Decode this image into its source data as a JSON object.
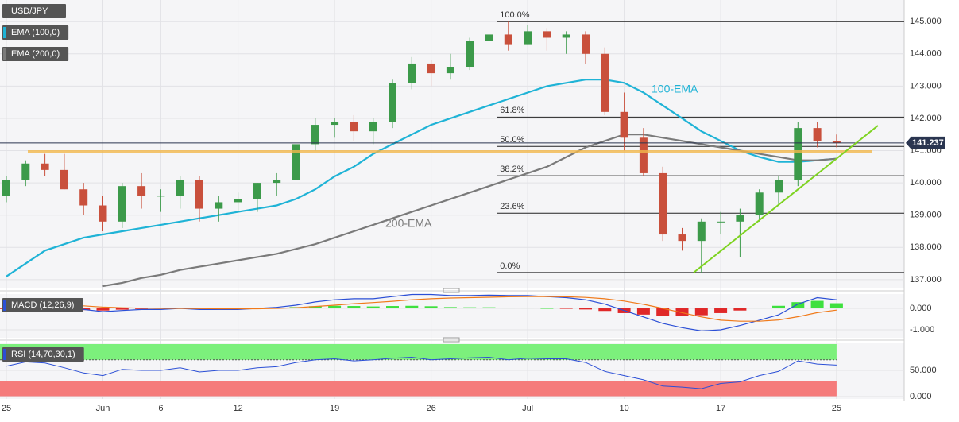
{
  "chart_data": [
    {
      "type": "candlestick",
      "title": "USD/JPY",
      "categories": [
        "25",
        null,
        null,
        null,
        null,
        "Jun",
        null,
        null,
        "6",
        null,
        null,
        null,
        "12",
        null,
        null,
        null,
        null,
        "19",
        null,
        null,
        null,
        null,
        "26",
        null,
        null,
        null,
        null,
        "Jul",
        null,
        null,
        null,
        null,
        "10",
        null,
        null,
        null,
        null,
        "17",
        null,
        null,
        null,
        null,
        null,
        "25"
      ],
      "open": [
        139.6,
        140.1,
        140.6,
        140.4,
        139.8,
        139.3,
        138.8,
        139.9,
        139.6,
        139.6,
        140.1,
        139.2,
        139.4,
        139.5,
        140.0,
        140.1,
        141.2,
        141.8,
        141.9,
        141.6,
        141.9,
        143.1,
        143.7,
        143.4,
        143.6,
        144.4,
        144.6,
        144.3,
        144.7,
        144.5,
        144.6,
        144.0,
        142.2,
        141.4,
        140.3,
        138.4,
        138.2,
        138.8,
        138.8,
        139.0,
        139.7,
        140.1,
        141.7,
        141.3
      ],
      "high": [
        140.2,
        140.7,
        140.9,
        140.9,
        140.0,
        139.6,
        140.0,
        140.3,
        139.8,
        140.2,
        140.2,
        139.6,
        139.7,
        140.0,
        140.3,
        141.4,
        142.0,
        142.0,
        142.1,
        142.0,
        143.2,
        143.9,
        143.8,
        144.0,
        144.5,
        144.7,
        145.0,
        144.9,
        144.8,
        144.7,
        144.7,
        144.2,
        142.8,
        141.7,
        140.5,
        138.6,
        138.9,
        139.1,
        139.2,
        139.8,
        140.2,
        141.9,
        141.9,
        141.5
      ],
      "low": [
        139.4,
        139.9,
        140.2,
        139.8,
        139.0,
        138.5,
        138.6,
        139.2,
        139.1,
        139.2,
        138.8,
        138.8,
        139.1,
        139.1,
        139.6,
        139.9,
        141.0,
        141.4,
        141.3,
        141.2,
        141.7,
        142.9,
        143.0,
        143.2,
        143.5,
        144.2,
        144.1,
        144.3,
        144.1,
        144.0,
        143.7,
        142.1,
        141.0,
        140.2,
        138.2,
        137.9,
        137.2,
        138.4,
        137.7,
        138.8,
        139.3,
        139.9,
        141.1,
        141.1
      ],
      "close": [
        140.1,
        140.6,
        140.4,
        139.8,
        139.3,
        138.8,
        139.9,
        139.6,
        139.6,
        140.1,
        139.2,
        139.4,
        139.5,
        140.0,
        140.1,
        141.2,
        141.8,
        141.9,
        141.6,
        141.9,
        143.1,
        143.7,
        143.4,
        143.6,
        144.4,
        144.6,
        144.3,
        144.7,
        144.5,
        144.6,
        144.0,
        142.2,
        141.4,
        140.3,
        138.4,
        138.2,
        138.8,
        138.8,
        139.0,
        139.7,
        140.1,
        141.7,
        141.3,
        141.24
      ],
      "up_color": "#3c9a4a",
      "down_color": "#c9503c",
      "overlays": [
        {
          "name": "EMA (100,0)",
          "label": "100-EMA",
          "color": "#1fb3d6",
          "values": [
            137.1,
            137.5,
            137.9,
            138.1,
            138.3,
            138.4,
            138.5,
            138.6,
            138.7,
            138.8,
            138.9,
            139.0,
            139.1,
            139.2,
            139.3,
            139.5,
            139.8,
            140.2,
            140.5,
            140.9,
            141.2,
            141.5,
            141.8,
            142.0,
            142.2,
            142.4,
            142.6,
            142.8,
            143.0,
            143.1,
            143.2,
            143.2,
            143.1,
            142.8,
            142.4,
            142.0,
            141.6,
            141.3,
            141.0,
            140.8,
            140.65,
            140.65,
            140.7,
            140.75
          ]
        },
        {
          "name": "EMA (200,0)",
          "label": "200-EMA",
          "color": "#7a7a7a",
          "values": [
            null,
            null,
            null,
            null,
            null,
            136.8,
            136.9,
            137.05,
            137.15,
            137.3,
            137.4,
            137.5,
            137.6,
            137.7,
            137.8,
            137.95,
            138.1,
            138.3,
            138.5,
            138.7,
            138.9,
            139.1,
            139.3,
            139.5,
            139.7,
            139.9,
            140.1,
            140.3,
            140.5,
            140.8,
            141.1,
            141.3,
            141.5,
            141.5,
            141.4,
            141.3,
            141.2,
            141.1,
            141.0,
            140.9,
            140.8,
            140.7,
            140.7,
            140.75
          ]
        }
      ],
      "fib_levels": [
        {
          "label": "100.0%",
          "value": 145.0
        },
        {
          "label": "61.8%",
          "value": 142.04
        },
        {
          "label": "50.0%",
          "value": 141.13
        },
        {
          "label": "38.2%",
          "value": 140.22
        },
        {
          "label": "23.6%",
          "value": 139.06
        },
        {
          "label": "0.0%",
          "value": 137.22
        }
      ],
      "current_price": {
        "value": 141.237,
        "label": "141.237"
      },
      "ylim": [
        136.75,
        145.67
      ],
      "yticks": [
        {
          "value": 137,
          "label": "137.000"
        },
        {
          "value": 138,
          "label": "138.000"
        },
        {
          "value": 139,
          "label": "139.000"
        },
        {
          "value": 140,
          "label": "140.000"
        },
        {
          "value": 141,
          "label": "141.000"
        },
        {
          "value": 142,
          "label": "142.000"
        },
        {
          "value": 143,
          "label": "143.000"
        },
        {
          "value": 144,
          "label": "144.000"
        },
        {
          "value": 145,
          "label": "145.000"
        }
      ],
      "grid": true
    },
    {
      "type": "macd",
      "title": "MACD (12,26,9)",
      "series": [
        {
          "color": "#2b4fd6",
          "values": [
            0.1,
            0.2,
            0.25,
            0.15,
            -0.05,
            -0.15,
            -0.1,
            -0.05,
            -0.05,
            0.0,
            -0.05,
            -0.05,
            -0.05,
            0.0,
            0.05,
            0.15,
            0.3,
            0.4,
            0.45,
            0.45,
            0.55,
            0.65,
            0.65,
            0.6,
            0.6,
            0.62,
            0.6,
            0.6,
            0.55,
            0.5,
            0.4,
            0.2,
            -0.1,
            -0.4,
            -0.7,
            -0.9,
            -1.05,
            -1.0,
            -0.8,
            -0.55,
            -0.3,
            0.2,
            0.5,
            0.4
          ]
        },
        {
          "color": "#f07a1a",
          "values": [
            0.15,
            0.16,
            0.18,
            0.17,
            0.12,
            0.06,
            0.03,
            0.01,
            0.0,
            0.0,
            -0.01,
            -0.02,
            -0.02,
            -0.02,
            0.0,
            0.03,
            0.09,
            0.15,
            0.22,
            0.27,
            0.33,
            0.4,
            0.45,
            0.48,
            0.5,
            0.52,
            0.54,
            0.55,
            0.55,
            0.54,
            0.51,
            0.45,
            0.34,
            0.19,
            0.0,
            -0.2,
            -0.4,
            -0.55,
            -0.6,
            -0.6,
            -0.54,
            -0.39,
            -0.2,
            -0.08
          ]
        }
      ],
      "histogram": [
        -0.03,
        0.02,
        0.04,
        -0.01,
        -0.08,
        -0.1,
        -0.06,
        -0.03,
        -0.02,
        0.0,
        -0.02,
        -0.02,
        -0.02,
        0.01,
        0.03,
        0.06,
        0.1,
        0.12,
        0.11,
        0.09,
        0.11,
        0.12,
        0.1,
        0.06,
        0.05,
        0.05,
        0.03,
        0.02,
        0.0,
        -0.02,
        -0.05,
        -0.12,
        -0.22,
        -0.29,
        -0.35,
        -0.35,
        -0.32,
        -0.22,
        -0.1,
        0.03,
        0.12,
        0.29,
        0.35,
        0.24
      ],
      "pos_color": "#3ee03e",
      "neg_color": "#e02828",
      "ylim": [
        -1.37,
        0.667
      ],
      "yticks": [
        {
          "value": 0,
          "label": "0.000"
        },
        {
          "value": -1,
          "label": "-1.000"
        }
      ]
    },
    {
      "type": "rsi",
      "title": "RSI (14,70,30,1)",
      "series": [
        {
          "color": "#2b4fd6",
          "values": [
            58,
            66,
            64,
            55,
            45,
            40,
            52,
            50,
            50,
            55,
            47,
            50,
            50,
            55,
            57,
            65,
            70,
            72,
            68,
            70,
            73,
            75,
            70,
            72,
            74,
            75,
            70,
            73,
            72,
            72,
            65,
            48,
            40,
            32,
            20,
            18,
            15,
            25,
            28,
            40,
            48,
            68,
            62,
            60
          ]
        }
      ],
      "bands": [
        {
          "from": 70,
          "to": 100,
          "color": "#7cf07c"
        },
        {
          "from": 0,
          "to": 30,
          "color": "#f57b7b"
        }
      ],
      "ylim": [
        -4.5,
        101.5
      ],
      "yticks": [
        {
          "value": 50,
          "label": "50.000"
        },
        {
          "value": 0,
          "label": "0.000"
        }
      ]
    }
  ]
}
